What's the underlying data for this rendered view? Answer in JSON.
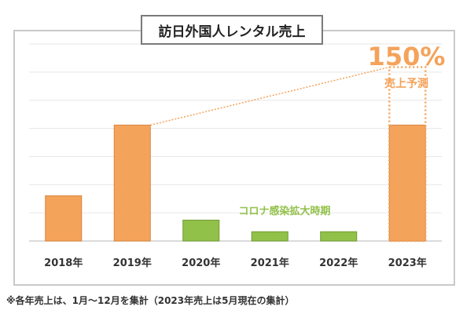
{
  "title": "訪日外国人レンタル売上",
  "forecast": {
    "value": "150%",
    "label": "売上予測"
  },
  "covid_label": "コロナ感染拡大時期",
  "footnote": "※各年売上は、1月～12月を集計（2023年売上は5月現在の集計）",
  "colors": {
    "orange": "#f4a35b",
    "green": "#92c14a",
    "grid": "#e6e6e6"
  },
  "chart_data": {
    "type": "bar",
    "categories": [
      "2018年",
      "2019年",
      "2020年",
      "2021年",
      "2022年",
      "2023年"
    ],
    "values": [
      39,
      100,
      18,
      8,
      8,
      100
    ],
    "forecast_value_2023": 150,
    "bar_colors": [
      "orange",
      "orange",
      "green",
      "green",
      "green",
      "orange"
    ],
    "ylim": [
      0,
      170
    ],
    "grid": true
  }
}
